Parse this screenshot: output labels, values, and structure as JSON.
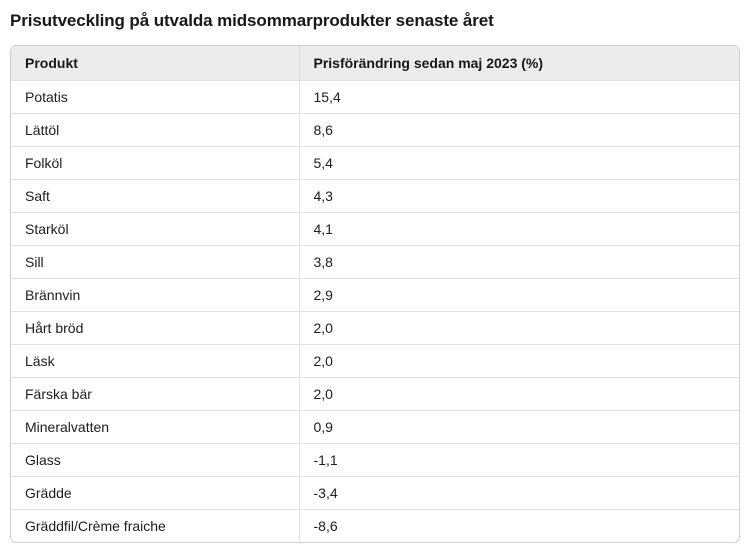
{
  "page": {
    "title": "Prisutveckling på utvalda midsommarprodukter senaste året"
  },
  "table": {
    "columns": [
      "Produkt",
      "Prisförändring sedan maj 2023 (%)"
    ],
    "rows": [
      {
        "product": "Potatis",
        "change": "15,4"
      },
      {
        "product": "Lättöl",
        "change": "8,6"
      },
      {
        "product": "Folköl",
        "change": "5,4"
      },
      {
        "product": "Saft",
        "change": "4,3"
      },
      {
        "product": "Starköl",
        "change": "4,1"
      },
      {
        "product": "Sill",
        "change": "3,8"
      },
      {
        "product": "Brännvin",
        "change": "2,9"
      },
      {
        "product": "Hårt bröd",
        "change": "2,0"
      },
      {
        "product": "Läsk",
        "change": "2,0"
      },
      {
        "product": "Färska bär",
        "change": "2,0"
      },
      {
        "product": "Mineralvatten",
        "change": "0,9"
      },
      {
        "product": "Glass",
        "change": "-1,1"
      },
      {
        "product": "Grädde",
        "change": "-3,4"
      },
      {
        "product": "Gräddfil/Crème fraiche",
        "change": "-8,6"
      }
    ]
  },
  "chart_data": {
    "type": "table",
    "title": "Prisutveckling på utvalda midsommarprodukter senaste året",
    "columns": [
      "Produkt",
      "Prisförändring sedan maj 2023 (%)"
    ],
    "categories": [
      "Potatis",
      "Lättöl",
      "Folköl",
      "Saft",
      "Starköl",
      "Sill",
      "Brännvin",
      "Hårt bröd",
      "Läsk",
      "Färska bär",
      "Mineralvatten",
      "Glass",
      "Grädde",
      "Gräddfil/Crème fraiche"
    ],
    "values": [
      15.4,
      8.6,
      5.4,
      4.3,
      4.1,
      3.8,
      2.9,
      2.0,
      2.0,
      2.0,
      0.9,
      -1.1,
      -3.4,
      -8.6
    ],
    "value_format": "decimal-comma",
    "legend": "none",
    "grid": "row-separators"
  },
  "colors": {
    "header_bg": "#ececec",
    "outer_border": "#cfcfcf",
    "inner_border": "#e1e1e1",
    "text": "#1c1d1f",
    "background": "#ffffff"
  }
}
